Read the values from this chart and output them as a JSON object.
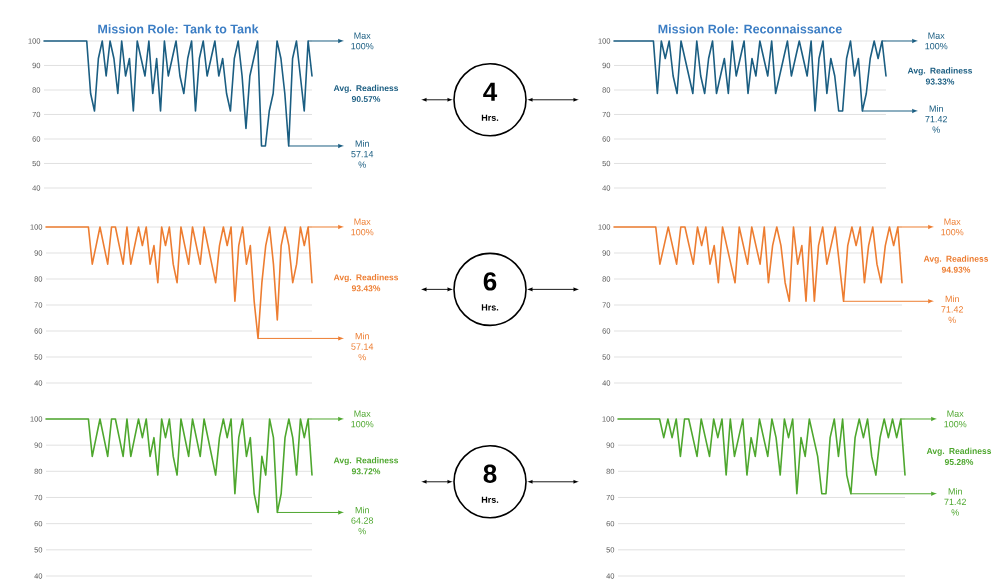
{
  "chart_data": [
    {
      "type": "line",
      "title": "Mission Role: Tank to Tank",
      "ylim": [
        40,
        100
      ],
      "yticks": [
        40,
        50,
        60,
        70,
        80,
        90,
        100
      ],
      "grid": "y",
      "categories": [
        null,
        null,
        null,
        null,
        null,
        null,
        null,
        null,
        null,
        null,
        null,
        null,
        null,
        null,
        null,
        null,
        null,
        null,
        null,
        null,
        null,
        null,
        null,
        null,
        null,
        null,
        null,
        null,
        null,
        null,
        null,
        null,
        null,
        null,
        null,
        null,
        null,
        null,
        null,
        null,
        null,
        null,
        null,
        null,
        null,
        null,
        null,
        null,
        null,
        null,
        null,
        null,
        null,
        null,
        null,
        null,
        null,
        null,
        null,
        null,
        null,
        null,
        null,
        null,
        null,
        null,
        null,
        null,
        null,
        null
      ],
      "series": [
        {
          "color": "#1b5e82",
          "values": [
            100,
            100,
            100,
            100,
            100,
            100,
            100,
            100,
            100,
            100,
            100,
            100,
            78.57,
            71.42,
            92.86,
            100,
            85.71,
            100,
            92.86,
            78.57,
            100,
            85.71,
            92.86,
            71.42,
            100,
            92.86,
            85.71,
            100,
            78.57,
            92.86,
            71.42,
            100,
            85.71,
            92.86,
            100,
            85.71,
            78.57,
            92.86,
            100,
            71.42,
            92.86,
            100,
            85.71,
            92.86,
            100,
            85.71,
            92.86,
            78.57,
            71.42,
            92.86,
            100,
            85.71,
            64.28,
            85.71,
            92.86,
            100,
            57.14,
            57.14,
            71.42,
            78.57,
            100,
            92.86,
            78.57,
            57.14,
            92.86,
            100,
            85.71,
            71.42,
            100,
            85.71
          ]
        }
      ],
      "annotations": [
        "Max 100%",
        "Avg. Readiness 90.57%",
        "Min 57.14 %",
        "4",
        "Hrs."
      ]
    },
    {
      "type": "line",
      "title": "Mission Role: Reconnaissance",
      "ylim": [
        40,
        100
      ],
      "yticks": [
        40,
        50,
        60,
        70,
        80,
        90,
        100
      ],
      "grid": "y",
      "categories": [
        null,
        null,
        null,
        null,
        null,
        null,
        null,
        null,
        null,
        null,
        null,
        null,
        null,
        null,
        null,
        null,
        null,
        null,
        null,
        null,
        null,
        null,
        null,
        null,
        null,
        null,
        null,
        null,
        null,
        null,
        null,
        null,
        null,
        null,
        null,
        null,
        null,
        null,
        null,
        null,
        null,
        null,
        null,
        null,
        null,
        null,
        null,
        null,
        null,
        null,
        null,
        null,
        null,
        null,
        null,
        null,
        null,
        null,
        null,
        null,
        null,
        null,
        null,
        null,
        null,
        null,
        null,
        null,
        null,
        null
      ],
      "series": [
        {
          "color": "#1b5e82",
          "values": [
            100,
            100,
            100,
            100,
            100,
            100,
            100,
            100,
            100,
            100,
            100,
            78.57,
            100,
            92.86,
            100,
            85.71,
            78.57,
            100,
            92.86,
            85.71,
            78.57,
            100,
            85.71,
            78.57,
            92.86,
            100,
            78.57,
            85.71,
            92.86,
            78.57,
            100,
            85.71,
            92.86,
            100,
            78.57,
            92.86,
            85.71,
            100,
            92.86,
            85.71,
            100,
            78.57,
            85.71,
            92.86,
            100,
            85.71,
            92.86,
            100,
            92.86,
            85.71,
            100,
            71.42,
            92.86,
            100,
            78.57,
            92.86,
            85.71,
            71.42,
            71.42,
            92.86,
            100,
            85.71,
            92.86,
            71.42,
            78.57,
            92.86,
            100,
            92.86,
            100,
            85.71
          ]
        }
      ],
      "annotations": [
        "Max 100%",
        "Avg. Readiness 93.33%",
        "Min 71.42 %"
      ]
    },
    {
      "type": "line",
      "ylim": [
        40,
        100
      ],
      "yticks": [
        40,
        50,
        60,
        70,
        80,
        90,
        100
      ],
      "grid": "y",
      "categories": [
        null,
        null,
        null,
        null,
        null,
        null,
        null,
        null,
        null,
        null,
        null,
        null,
        null,
        null,
        null,
        null,
        null,
        null,
        null,
        null,
        null,
        null,
        null,
        null,
        null,
        null,
        null,
        null,
        null,
        null,
        null,
        null,
        null,
        null,
        null,
        null,
        null,
        null,
        null,
        null,
        null,
        null,
        null,
        null,
        null,
        null,
        null,
        null,
        null,
        null,
        null,
        null,
        null,
        null,
        null,
        null,
        null,
        null,
        null,
        null,
        null,
        null,
        null,
        null,
        null,
        null,
        null,
        null,
        null,
        null
      ],
      "series": [
        {
          "color": "#ed7d31",
          "values": [
            100,
            100,
            100,
            100,
            100,
            100,
            100,
            100,
            100,
            100,
            100,
            100,
            85.71,
            92.86,
            100,
            92.86,
            85.71,
            100,
            100,
            92.86,
            85.71,
            100,
            85.71,
            92.86,
            100,
            92.86,
            100,
            85.71,
            92.86,
            78.57,
            100,
            92.86,
            100,
            85.71,
            78.57,
            100,
            92.86,
            85.71,
            100,
            92.86,
            85.71,
            100,
            92.86,
            85.71,
            78.57,
            92.86,
            100,
            92.86,
            100,
            71.42,
            92.86,
            100,
            85.71,
            92.86,
            71.42,
            57.14,
            78.57,
            92.86,
            100,
            85.71,
            64.28,
            92.86,
            100,
            92.86,
            78.57,
            85.71,
            100,
            92.86,
            100,
            78.57
          ]
        }
      ],
      "annotations": [
        "Max 100%",
        "Avg. Readiness 93.43%",
        "Min 57.14 %",
        "6",
        "Hrs."
      ]
    },
    {
      "type": "line",
      "ylim": [
        40,
        100
      ],
      "yticks": [
        40,
        50,
        60,
        70,
        80,
        90,
        100
      ],
      "grid": "y",
      "categories": [
        null,
        null,
        null,
        null,
        null,
        null,
        null,
        null,
        null,
        null,
        null,
        null,
        null,
        null,
        null,
        null,
        null,
        null,
        null,
        null,
        null,
        null,
        null,
        null,
        null,
        null,
        null,
        null,
        null,
        null,
        null,
        null,
        null,
        null,
        null,
        null,
        null,
        null,
        null,
        null,
        null,
        null,
        null,
        null,
        null,
        null,
        null,
        null,
        null,
        null,
        null,
        null,
        null,
        null,
        null,
        null,
        null,
        null,
        null,
        null,
        null,
        null,
        null,
        null,
        null,
        null,
        null,
        null,
        null,
        null
      ],
      "series": [
        {
          "color": "#ed7d31",
          "values": [
            100,
            100,
            100,
            100,
            100,
            100,
            100,
            100,
            100,
            100,
            100,
            85.71,
            92.86,
            100,
            92.86,
            85.71,
            100,
            100,
            92.86,
            85.71,
            100,
            92.86,
            100,
            85.71,
            92.86,
            78.57,
            100,
            92.86,
            85.71,
            78.57,
            100,
            92.86,
            85.71,
            100,
            92.86,
            85.71,
            100,
            78.57,
            92.86,
            100,
            92.86,
            78.57,
            71.42,
            100,
            85.71,
            92.86,
            71.42,
            100,
            71.42,
            92.86,
            100,
            85.71,
            92.86,
            100,
            85.71,
            71.42,
            92.86,
            100,
            92.86,
            100,
            78.57,
            92.86,
            100,
            85.71,
            78.57,
            92.86,
            100,
            92.86,
            100,
            78.57
          ]
        }
      ],
      "annotations": [
        "Max 100%",
        "Avg. Readiness 94.93%",
        "Min 71.42 %"
      ]
    },
    {
      "type": "line",
      "ylim": [
        40,
        100
      ],
      "yticks": [
        40,
        50,
        60,
        70,
        80,
        90,
        100
      ],
      "grid": "y",
      "categories": [
        null,
        null,
        null,
        null,
        null,
        null,
        null,
        null,
        null,
        null,
        null,
        null,
        null,
        null,
        null,
        null,
        null,
        null,
        null,
        null,
        null,
        null,
        null,
        null,
        null,
        null,
        null,
        null,
        null,
        null,
        null,
        null,
        null,
        null,
        null,
        null,
        null,
        null,
        null,
        null,
        null,
        null,
        null,
        null,
        null,
        null,
        null,
        null,
        null,
        null,
        null,
        null,
        null,
        null,
        null,
        null,
        null,
        null,
        null,
        null,
        null,
        null,
        null,
        null,
        null,
        null,
        null,
        null,
        null,
        null
      ],
      "series": [
        {
          "color": "#4ea72e",
          "values": [
            100,
            100,
            100,
            100,
            100,
            100,
            100,
            100,
            100,
            100,
            100,
            100,
            85.71,
            92.86,
            100,
            92.86,
            85.71,
            100,
            100,
            92.86,
            85.71,
            100,
            85.71,
            92.86,
            100,
            92.86,
            100,
            85.71,
            92.86,
            78.57,
            100,
            92.86,
            100,
            85.71,
            78.57,
            100,
            92.86,
            85.71,
            100,
            92.86,
            85.71,
            100,
            92.86,
            85.71,
            78.57,
            92.86,
            100,
            92.86,
            100,
            71.42,
            92.86,
            100,
            85.71,
            92.86,
            71.42,
            64.28,
            85.71,
            78.57,
            100,
            92.86,
            64.28,
            71.42,
            92.86,
            100,
            92.86,
            78.57,
            100,
            92.86,
            100,
            78.57
          ]
        }
      ],
      "annotations": [
        "Max 100%",
        "Avg. Readiness 93.72%",
        "Min 64.28 %",
        "8",
        "Hrs."
      ]
    },
    {
      "type": "line",
      "ylim": [
        40,
        100
      ],
      "yticks": [
        40,
        50,
        60,
        70,
        80,
        90,
        100
      ],
      "grid": "y",
      "categories": [
        null,
        null,
        null,
        null,
        null,
        null,
        null,
        null,
        null,
        null,
        null,
        null,
        null,
        null,
        null,
        null,
        null,
        null,
        null,
        null,
        null,
        null,
        null,
        null,
        null,
        null,
        null,
        null,
        null,
        null,
        null,
        null,
        null,
        null,
        null,
        null,
        null,
        null,
        null,
        null,
        null,
        null,
        null,
        null,
        null,
        null,
        null,
        null,
        null,
        null,
        null,
        null,
        null,
        null,
        null,
        null,
        null,
        null,
        null,
        null,
        null,
        null,
        null,
        null,
        null,
        null,
        null,
        null,
        null,
        null
      ],
      "series": [
        {
          "color": "#4ea72e",
          "values": [
            100,
            100,
            100,
            100,
            100,
            100,
            100,
            100,
            100,
            100,
            100,
            92.86,
            100,
            92.86,
            100,
            85.71,
            100,
            100,
            92.86,
            85.71,
            100,
            92.86,
            85.71,
            100,
            92.86,
            100,
            78.57,
            100,
            85.71,
            92.86,
            100,
            78.57,
            92.86,
            85.71,
            100,
            92.86,
            85.71,
            100,
            92.86,
            78.57,
            100,
            92.86,
            100,
            71.42,
            92.86,
            85.71,
            100,
            92.86,
            85.71,
            71.42,
            71.42,
            92.86,
            100,
            85.71,
            100,
            78.57,
            71.42,
            92.86,
            100,
            92.86,
            100,
            85.71,
            78.57,
            92.86,
            100,
            92.86,
            100,
            92.86,
            100,
            78.57
          ]
        }
      ],
      "annotations": [
        "Max 100%",
        "Avg. Readiness 95.28%",
        "Min 71.42 %"
      ]
    }
  ]
}
